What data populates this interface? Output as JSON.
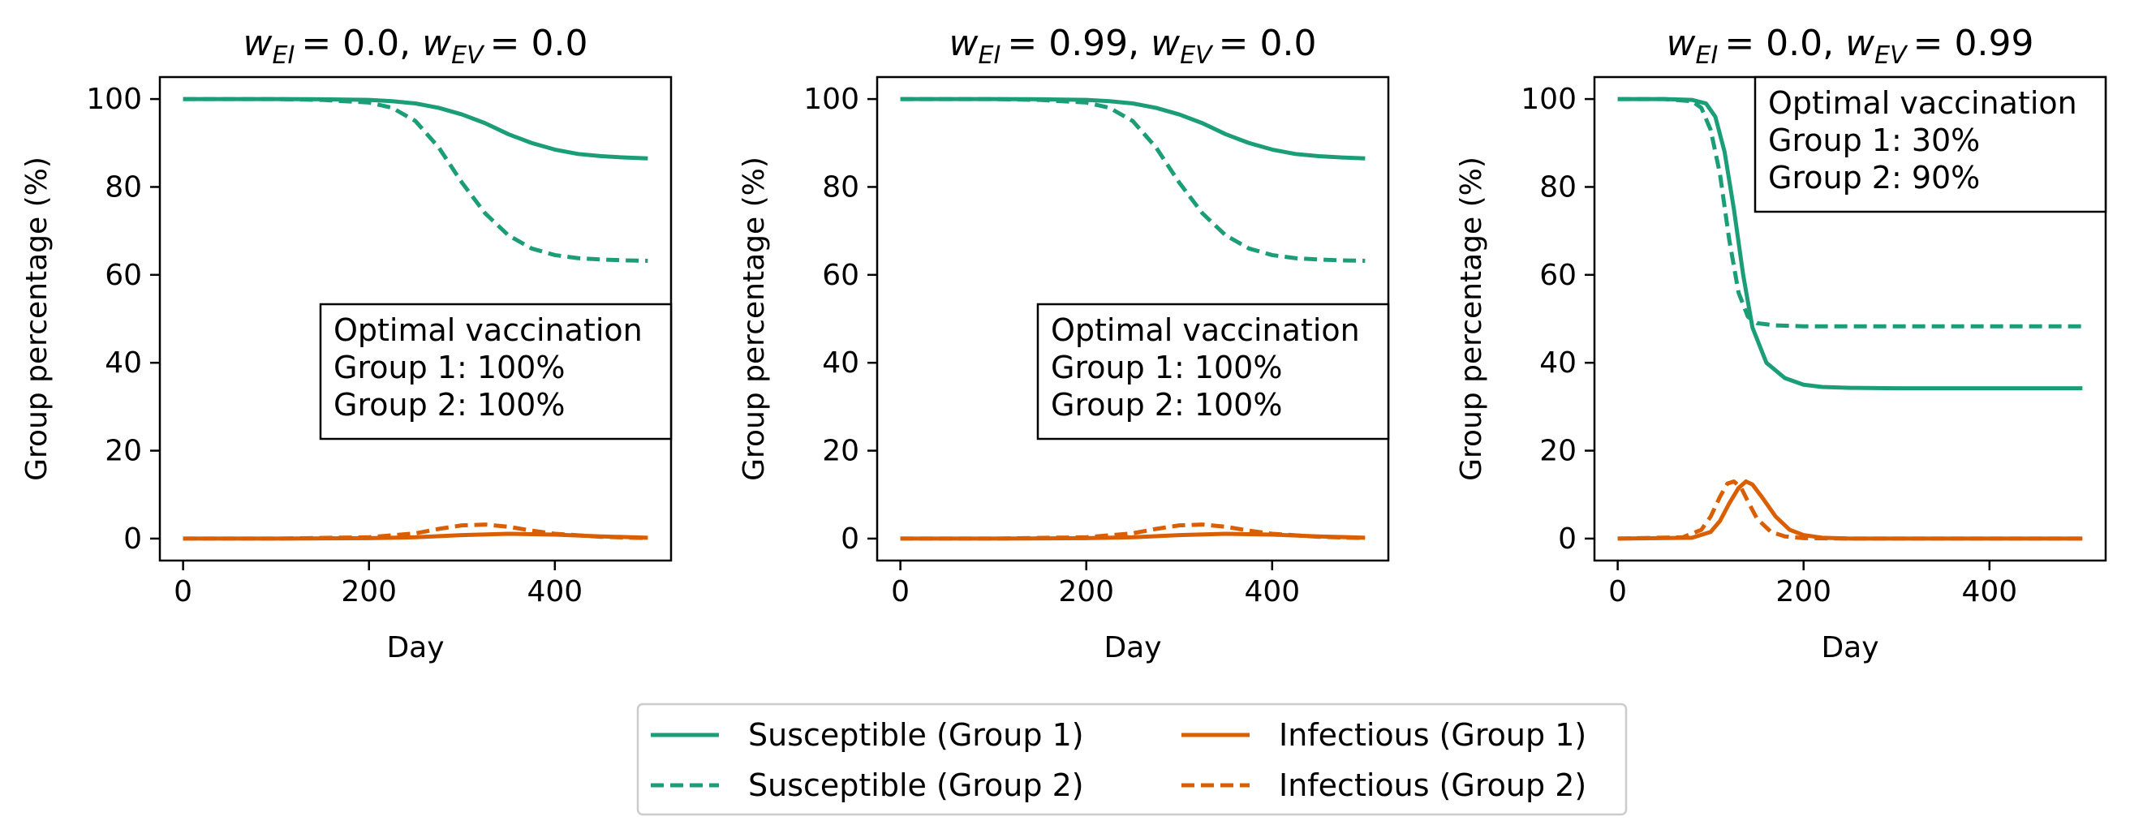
{
  "colors": {
    "susceptible": "#1b9e77",
    "infectious": "#d95f02",
    "axes": "#000000",
    "legend_border": "#cccccc"
  },
  "legend": {
    "placement": "bottom-center",
    "entries": [
      {
        "label": "Susceptible (Group 1)",
        "color": "#1b9e77",
        "dash": "solid"
      },
      {
        "label": "Susceptible (Group 2)",
        "color": "#1b9e77",
        "dash": "dashed"
      },
      {
        "label": "Infectious (Group 1)",
        "color": "#d95f02",
        "dash": "solid"
      },
      {
        "label": "Infectious (Group 2)",
        "color": "#d95f02",
        "dash": "dashed"
      }
    ]
  },
  "chart_data": [
    {
      "type": "line",
      "title": {
        "w1_sym": "w",
        "w1_sub": "EI",
        "w1_val": "= 0.0,",
        "w2_sym": "w",
        "w2_sub": "EV",
        "w2_val": "= 0.0"
      },
      "xlabel": "Day",
      "ylabel": "Group percentage (%)",
      "xlim": [
        -25,
        525
      ],
      "ylim": [
        -5,
        105
      ],
      "xticks": [
        0,
        200,
        400
      ],
      "yticks": [
        0,
        20,
        40,
        60,
        80,
        100
      ],
      "grid": false,
      "annotation": {
        "lines": [
          "Optimal vaccination",
          "Group 1: 100%",
          "Group 2: 100%"
        ],
        "placement": "center-right"
      },
      "series": [
        {
          "name": "Susceptible (Group 1)",
          "color": "#1b9e77",
          "dash": "solid",
          "x": [
            0,
            50,
            100,
            150,
            200,
            225,
            250,
            275,
            300,
            325,
            350,
            375,
            400,
            425,
            450,
            475,
            500
          ],
          "y": [
            100,
            100,
            100,
            99.95,
            99.8,
            99.5,
            99,
            98,
            96.5,
            94.5,
            92,
            90,
            88.5,
            87.5,
            87,
            86.7,
            86.5
          ]
        },
        {
          "name": "Susceptible (Group 2)",
          "color": "#1b9e77",
          "dash": "dashed",
          "x": [
            0,
            50,
            100,
            150,
            200,
            225,
            250,
            275,
            300,
            325,
            350,
            375,
            400,
            425,
            450,
            475,
            500
          ],
          "y": [
            100,
            100,
            100,
            99.8,
            99.2,
            98,
            95,
            89,
            81,
            74,
            69,
            66,
            64.5,
            63.8,
            63.5,
            63.3,
            63.2
          ]
        },
        {
          "name": "Infectious (Group 1)",
          "color": "#d95f02",
          "dash": "solid",
          "x": [
            0,
            100,
            200,
            250,
            300,
            350,
            400,
            450,
            500
          ],
          "y": [
            0,
            0,
            0.1,
            0.3,
            0.8,
            1.1,
            0.9,
            0.5,
            0.2
          ]
        },
        {
          "name": "Infectious (Group 2)",
          "color": "#d95f02",
          "dash": "dashed",
          "x": [
            0,
            100,
            200,
            250,
            275,
            300,
            325,
            350,
            375,
            400,
            450,
            500
          ],
          "y": [
            0,
            0,
            0.3,
            1.2,
            2.2,
            3,
            3.2,
            2.7,
            1.8,
            1.1,
            0.4,
            0.1
          ]
        }
      ]
    },
    {
      "type": "line",
      "title": {
        "w1_sym": "w",
        "w1_sub": "EI",
        "w1_val": "= 0.99,",
        "w2_sym": "w",
        "w2_sub": "EV",
        "w2_val": "= 0.0"
      },
      "xlabel": "Day",
      "ylabel": "Group percentage (%)",
      "xlim": [
        -25,
        525
      ],
      "ylim": [
        -5,
        105
      ],
      "xticks": [
        0,
        200,
        400
      ],
      "yticks": [
        0,
        20,
        40,
        60,
        80,
        100
      ],
      "grid": false,
      "annotation": {
        "lines": [
          "Optimal vaccination",
          "Group 1: 100%",
          "Group 2: 100%"
        ],
        "placement": "center-right"
      },
      "series": [
        {
          "name": "Susceptible (Group 1)",
          "color": "#1b9e77",
          "dash": "solid",
          "x": [
            0,
            50,
            100,
            150,
            200,
            225,
            250,
            275,
            300,
            325,
            350,
            375,
            400,
            425,
            450,
            475,
            500
          ],
          "y": [
            100,
            100,
            100,
            99.95,
            99.8,
            99.5,
            99,
            98,
            96.5,
            94.5,
            92,
            90,
            88.5,
            87.5,
            87,
            86.7,
            86.5
          ]
        },
        {
          "name": "Susceptible (Group 2)",
          "color": "#1b9e77",
          "dash": "dashed",
          "x": [
            0,
            50,
            100,
            150,
            200,
            225,
            250,
            275,
            300,
            325,
            350,
            375,
            400,
            425,
            450,
            475,
            500
          ],
          "y": [
            100,
            100,
            100,
            99.8,
            99.2,
            98,
            95,
            89,
            81,
            74,
            69,
            66,
            64.5,
            63.8,
            63.5,
            63.3,
            63.2
          ]
        },
        {
          "name": "Infectious (Group 1)",
          "color": "#d95f02",
          "dash": "solid",
          "x": [
            0,
            100,
            200,
            250,
            300,
            350,
            400,
            450,
            500
          ],
          "y": [
            0,
            0,
            0.1,
            0.3,
            0.8,
            1.1,
            0.9,
            0.5,
            0.2
          ]
        },
        {
          "name": "Infectious (Group 2)",
          "color": "#d95f02",
          "dash": "dashed",
          "x": [
            0,
            100,
            200,
            250,
            275,
            300,
            325,
            350,
            375,
            400,
            450,
            500
          ],
          "y": [
            0,
            0,
            0.3,
            1.2,
            2.2,
            3,
            3.2,
            2.7,
            1.8,
            1.1,
            0.4,
            0.1
          ]
        }
      ]
    },
    {
      "type": "line",
      "title": {
        "w1_sym": "w",
        "w1_sub": "EI",
        "w1_val": "= 0.0,",
        "w2_sym": "w",
        "w2_sub": "EV",
        "w2_val": "= 0.99"
      },
      "xlabel": "Day",
      "ylabel": "Group percentage (%)",
      "xlim": [
        -25,
        525
      ],
      "ylim": [
        -5,
        105
      ],
      "xticks": [
        0,
        200,
        400
      ],
      "yticks": [
        0,
        20,
        40,
        60,
        80,
        100
      ],
      "grid": false,
      "annotation": {
        "lines": [
          "Optimal vaccination",
          "Group 1: 30%",
          "Group 2: 90%"
        ],
        "placement": "top-right"
      },
      "series": [
        {
          "name": "Susceptible (Group 1)",
          "color": "#1b9e77",
          "dash": "solid",
          "x": [
            0,
            50,
            80,
            95,
            105,
            115,
            125,
            135,
            145,
            160,
            180,
            200,
            220,
            250,
            300,
            400,
            500
          ],
          "y": [
            100,
            100,
            99.8,
            99,
            96,
            88,
            75,
            60,
            48,
            40,
            36.5,
            35,
            34.5,
            34.3,
            34.2,
            34.2,
            34.2
          ]
        },
        {
          "name": "Susceptible (Group 2)",
          "color": "#1b9e77",
          "dash": "dashed",
          "x": [
            0,
            50,
            80,
            90,
            100,
            110,
            120,
            130,
            140,
            150,
            170,
            200,
            300,
            400,
            500
          ],
          "y": [
            100,
            100,
            99.5,
            98,
            93,
            83,
            68,
            56,
            50.5,
            49,
            48.5,
            48.3,
            48.3,
            48.3,
            48.3
          ]
        },
        {
          "name": "Infectious (Group 1)",
          "color": "#d95f02",
          "dash": "solid",
          "x": [
            0,
            80,
            100,
            110,
            120,
            130,
            138,
            145,
            155,
            170,
            185,
            200,
            220,
            250,
            300,
            500
          ],
          "y": [
            0,
            0.2,
            1.5,
            4,
            8,
            11.5,
            13,
            12.3,
            9.5,
            5,
            2,
            0.8,
            0.2,
            0,
            0,
            0
          ]
        },
        {
          "name": "Infectious (Group 2)",
          "color": "#d95f02",
          "dash": "dashed",
          "x": [
            0,
            70,
            90,
            100,
            110,
            118,
            125,
            133,
            140,
            150,
            165,
            180,
            200,
            250,
            500
          ],
          "y": [
            0,
            0.3,
            2,
            5,
            9.5,
            12.5,
            13,
            11.5,
            8.5,
            4.5,
            1.5,
            0.5,
            0.1,
            0,
            0
          ]
        }
      ]
    }
  ]
}
